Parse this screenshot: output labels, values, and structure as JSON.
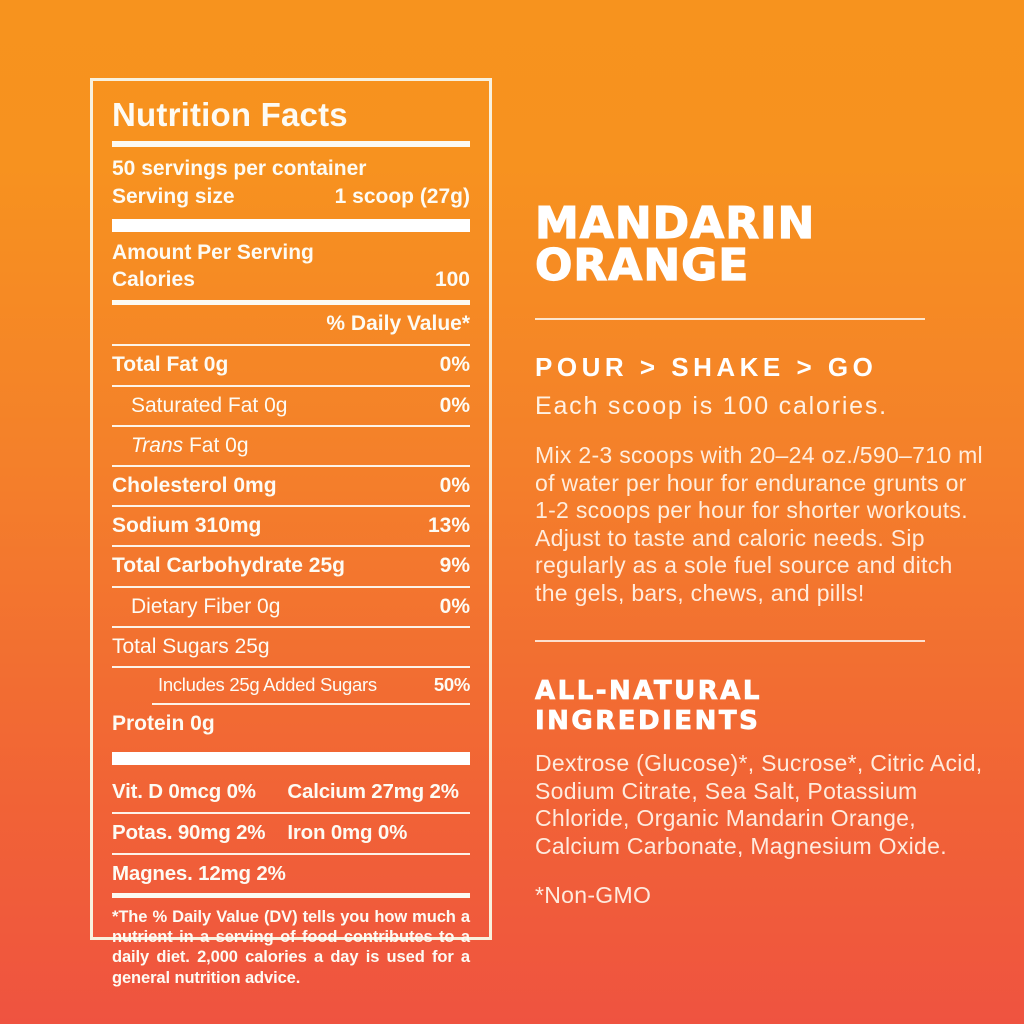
{
  "background": {
    "top_color": "#F7931E",
    "bottom_color": "#EF5340"
  },
  "nutrition_facts": {
    "title": "Nutrition Facts",
    "servings_per_container": "50 servings per container",
    "serving_size_label": "Serving size",
    "serving_size_value": "1 scoop (27g)",
    "amount_per_serving": "Amount Per Serving",
    "calories_label": "Calories",
    "calories_value": "100",
    "daily_value_header": "% Daily Value*",
    "rows": [
      {
        "label": "Total Fat 0g",
        "dv": "0%"
      },
      {
        "label": "Saturated Fat 0g",
        "dv": "0%"
      },
      {
        "label_italic": "Trans",
        "label": "Fat 0g",
        "dv": ""
      },
      {
        "label": "Cholesterol 0mg",
        "dv": "0%"
      },
      {
        "label": "Sodium 310mg",
        "dv": "13%"
      },
      {
        "label": "Total Carbohydrate 25g",
        "dv": "9%"
      },
      {
        "label": "Dietary Fiber 0g",
        "dv": "0%"
      },
      {
        "label": "Total Sugars 25g",
        "dv": ""
      },
      {
        "label": "Includes 25g Added Sugars",
        "dv": "50%"
      },
      {
        "label": "Protein 0g",
        "dv": ""
      }
    ],
    "micronutrients": [
      [
        "Vit. D 0mcg 0%",
        "Calcium 27mg 2%"
      ],
      [
        "Potas. 90mg 2%",
        "Iron 0mg 0%"
      ],
      [
        "Magnes. 12mg 2%",
        ""
      ]
    ],
    "footnote": "*The % Daily Value (DV) tells you how much a nutrient in a serving of food contributes to a daily diet. 2,000 calories a day is used for a general nutrition advice."
  },
  "product": {
    "flavor_line1": "MANDARIN",
    "flavor_line2": "ORANGE",
    "tagline": "POUR > SHAKE > GO",
    "subtagline": "Each scoop is 100 calories.",
    "directions": "Mix 2-3 scoops with 20–24 oz./590–710 ml of water per hour for endurance grunts or 1-2 scoops per hour for shorter workouts. Adjust to taste and caloric needs. Sip regularly as a sole fuel source and ditch the gels, bars, chews, and pills!",
    "ingredients_title": "ALL-NATURAL INGREDIENTS",
    "ingredients": "Dextrose (Glucose)*, Sucrose*, Citric Acid, Sodium Citrate, Sea Salt, Potassium Chloride, Organic Mandarin Orange, Calcium Carbonate, Magnesium Oxide.",
    "non_gmo": "*Non-GMO"
  }
}
